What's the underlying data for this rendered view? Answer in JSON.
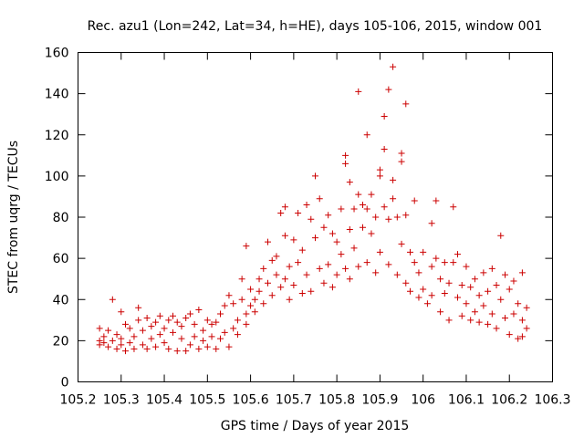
{
  "chart_data": {
    "type": "scatter",
    "title": "Rec. azu1 (Lon=242, Lat=34, h=HE), days 105-106, 2015, window 001",
    "xlabel": "GPS time / Days of year 2015",
    "ylabel": "STEC from uqrg / TECUs",
    "xlim": [
      105.2,
      106.3
    ],
    "ylim": [
      0,
      160
    ],
    "xticks": [
      105.2,
      105.3,
      105.4,
      105.5,
      105.6,
      105.7,
      105.8,
      105.9,
      106,
      106.1,
      106.2,
      106.3
    ],
    "xtick_labels": [
      "105.2",
      "105.3",
      "105.4",
      "105.5",
      "105.6",
      "105.7",
      "105.8",
      "105.9",
      "106",
      "106.1",
      "106.2",
      "106.3"
    ],
    "yticks": [
      0,
      20,
      40,
      60,
      80,
      100,
      120,
      140,
      160
    ],
    "ytick_labels": [
      "0",
      "20",
      "40",
      "60",
      "80",
      "100",
      "120",
      "140",
      "160"
    ],
    "marker": "plus",
    "color": "#cc0000",
    "grid": false,
    "legend": "none",
    "series": [
      {
        "points": [
          [
            105.25,
            26
          ],
          [
            105.25,
            20
          ],
          [
            105.25,
            18
          ],
          [
            105.26,
            22
          ],
          [
            105.26,
            19
          ],
          [
            105.27,
            25
          ],
          [
            105.27,
            17
          ],
          [
            105.28,
            40
          ],
          [
            105.28,
            20
          ],
          [
            105.29,
            16
          ],
          [
            105.29,
            23
          ],
          [
            105.3,
            34
          ],
          [
            105.3,
            18
          ],
          [
            105.3,
            21
          ],
          [
            105.31,
            28
          ],
          [
            105.31,
            15
          ],
          [
            105.32,
            19
          ],
          [
            105.32,
            26
          ],
          [
            105.33,
            22
          ],
          [
            105.33,
            16
          ],
          [
            105.34,
            36
          ],
          [
            105.34,
            30
          ],
          [
            105.35,
            25
          ],
          [
            105.35,
            18
          ],
          [
            105.36,
            31
          ],
          [
            105.36,
            16
          ],
          [
            105.37,
            21
          ],
          [
            105.37,
            27
          ],
          [
            105.38,
            29
          ],
          [
            105.38,
            17
          ],
          [
            105.39,
            23
          ],
          [
            105.39,
            32
          ],
          [
            105.4,
            26
          ],
          [
            105.4,
            19
          ],
          [
            105.41,
            16
          ],
          [
            105.41,
            30
          ],
          [
            105.42,
            24
          ],
          [
            105.42,
            32
          ],
          [
            105.43,
            29
          ],
          [
            105.43,
            15
          ],
          [
            105.44,
            21
          ],
          [
            105.44,
            27
          ],
          [
            105.45,
            15
          ],
          [
            105.45,
            31
          ],
          [
            105.46,
            33
          ],
          [
            105.46,
            18
          ],
          [
            105.47,
            22
          ],
          [
            105.47,
            28
          ],
          [
            105.48,
            16
          ],
          [
            105.48,
            35
          ],
          [
            105.49,
            25
          ],
          [
            105.49,
            20
          ],
          [
            105.5,
            30
          ],
          [
            105.5,
            17
          ],
          [
            105.51,
            22
          ],
          [
            105.51,
            28
          ],
          [
            105.52,
            16
          ],
          [
            105.52,
            29
          ],
          [
            105.53,
            21
          ],
          [
            105.53,
            33
          ],
          [
            105.54,
            37
          ],
          [
            105.54,
            24
          ],
          [
            105.55,
            17
          ],
          [
            105.55,
            42
          ],
          [
            105.56,
            26
          ],
          [
            105.56,
            38
          ],
          [
            105.57,
            30
          ],
          [
            105.57,
            23
          ],
          [
            105.58,
            50
          ],
          [
            105.58,
            40
          ],
          [
            105.59,
            33
          ],
          [
            105.59,
            66
          ],
          [
            105.59,
            28
          ],
          [
            105.6,
            45
          ],
          [
            105.6,
            37
          ],
          [
            105.61,
            40
          ],
          [
            105.61,
            34
          ],
          [
            105.62,
            50
          ],
          [
            105.62,
            44
          ],
          [
            105.63,
            55
          ],
          [
            105.63,
            38
          ],
          [
            105.64,
            68
          ],
          [
            105.64,
            48
          ],
          [
            105.65,
            59
          ],
          [
            105.65,
            42
          ],
          [
            105.66,
            61
          ],
          [
            105.66,
            52
          ],
          [
            105.67,
            82
          ],
          [
            105.67,
            46
          ],
          [
            105.68,
            85
          ],
          [
            105.68,
            71
          ],
          [
            105.68,
            50
          ],
          [
            105.69,
            56
          ],
          [
            105.69,
            40
          ],
          [
            105.7,
            69
          ],
          [
            105.7,
            47
          ],
          [
            105.71,
            82
          ],
          [
            105.71,
            58
          ],
          [
            105.72,
            64
          ],
          [
            105.72,
            43
          ],
          [
            105.73,
            86
          ],
          [
            105.73,
            52
          ],
          [
            105.74,
            79
          ],
          [
            105.74,
            44
          ],
          [
            105.75,
            100
          ],
          [
            105.75,
            70
          ],
          [
            105.76,
            89
          ],
          [
            105.76,
            55
          ],
          [
            105.77,
            75
          ],
          [
            105.77,
            48
          ],
          [
            105.78,
            81
          ],
          [
            105.78,
            57
          ],
          [
            105.79,
            72
          ],
          [
            105.79,
            46
          ],
          [
            105.8,
            68
          ],
          [
            105.8,
            52
          ],
          [
            105.81,
            84
          ],
          [
            105.81,
            62
          ],
          [
            105.82,
            106
          ],
          [
            105.82,
            110
          ],
          [
            105.82,
            55
          ],
          [
            105.83,
            97
          ],
          [
            105.83,
            74
          ],
          [
            105.83,
            50
          ],
          [
            105.84,
            84
          ],
          [
            105.84,
            65
          ],
          [
            105.85,
            141
          ],
          [
            105.85,
            91
          ],
          [
            105.85,
            56
          ],
          [
            105.86,
            86
          ],
          [
            105.86,
            75
          ],
          [
            105.87,
            120
          ],
          [
            105.87,
            84
          ],
          [
            105.87,
            58
          ],
          [
            105.88,
            91
          ],
          [
            105.88,
            72
          ],
          [
            105.89,
            80
          ],
          [
            105.89,
            53
          ],
          [
            105.9,
            103
          ],
          [
            105.9,
            100
          ],
          [
            105.9,
            63
          ],
          [
            105.91,
            113
          ],
          [
            105.91,
            129
          ],
          [
            105.91,
            85
          ],
          [
            105.92,
            142
          ],
          [
            105.92,
            79
          ],
          [
            105.92,
            57
          ],
          [
            105.93,
            153
          ],
          [
            105.93,
            98
          ],
          [
            105.93,
            89
          ],
          [
            105.94,
            80
          ],
          [
            105.94,
            52
          ],
          [
            105.95,
            111
          ],
          [
            105.95,
            107
          ],
          [
            105.95,
            67
          ],
          [
            105.96,
            135
          ],
          [
            105.96,
            81
          ],
          [
            105.96,
            48
          ],
          [
            105.97,
            63
          ],
          [
            105.97,
            44
          ],
          [
            105.98,
            88
          ],
          [
            105.98,
            58
          ],
          [
            105.99,
            53
          ],
          [
            105.99,
            41
          ],
          [
            106,
            63
          ],
          [
            106,
            45
          ],
          [
            106.01,
            38
          ],
          [
            106.02,
            77
          ],
          [
            106.02,
            56
          ],
          [
            106.02,
            42
          ],
          [
            106.03,
            88
          ],
          [
            106.03,
            60
          ],
          [
            106.04,
            50
          ],
          [
            106.04,
            34
          ],
          [
            106.05,
            58
          ],
          [
            106.05,
            43
          ],
          [
            106.06,
            30
          ],
          [
            106.06,
            48
          ],
          [
            106.07,
            85
          ],
          [
            106.07,
            58
          ],
          [
            106.08,
            62
          ],
          [
            106.08,
            41
          ],
          [
            106.09,
            32
          ],
          [
            106.09,
            47
          ],
          [
            106.1,
            56
          ],
          [
            106.1,
            38
          ],
          [
            106.11,
            30
          ],
          [
            106.11,
            46
          ],
          [
            106.12,
            50
          ],
          [
            106.12,
            34
          ],
          [
            106.13,
            42
          ],
          [
            106.13,
            29
          ],
          [
            106.14,
            53
          ],
          [
            106.14,
            37
          ],
          [
            106.15,
            44
          ],
          [
            106.15,
            28
          ],
          [
            106.16,
            55
          ],
          [
            106.16,
            33
          ],
          [
            106.17,
            47
          ],
          [
            106.17,
            26
          ],
          [
            106.18,
            71
          ],
          [
            106.18,
            40
          ],
          [
            106.19,
            52
          ],
          [
            106.19,
            31
          ],
          [
            106.2,
            45
          ],
          [
            106.2,
            23
          ],
          [
            106.21,
            49
          ],
          [
            106.21,
            33
          ],
          [
            106.22,
            38
          ],
          [
            106.22,
            21
          ],
          [
            106.23,
            53
          ],
          [
            106.23,
            30
          ],
          [
            106.23,
            22
          ],
          [
            106.24,
            36
          ],
          [
            106.24,
            26
          ]
        ]
      }
    ]
  }
}
